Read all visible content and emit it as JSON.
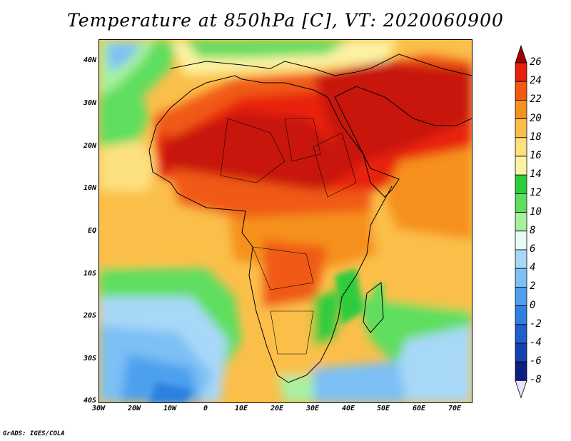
{
  "title": "Temperature at 850hPa [C], VT: 2020060900",
  "credit": "GrADS: IGES/COLA",
  "map": {
    "projection": "latlon",
    "lon_range": [
      -30,
      75
    ],
    "lat_range": [
      -40,
      45
    ],
    "lat_ticks": [
      "40N",
      "30N",
      "20N",
      "10N",
      "EQ",
      "10S",
      "20S",
      "30S",
      "40S"
    ],
    "lon_ticks": [
      "30W",
      "20W",
      "10W",
      "0",
      "10E",
      "20E",
      "30E",
      "40E",
      "50E",
      "60E",
      "70E"
    ]
  },
  "colorbar": {
    "unit": "C",
    "levels": [
      26,
      24,
      22,
      20,
      18,
      16,
      14,
      12,
      10,
      8,
      6,
      4,
      2,
      0,
      "-2",
      "-4",
      "-6",
      "-8"
    ],
    "colors": [
      "#a00000",
      "#e8200e",
      "#f05a12",
      "#f5911e",
      "#fbbf4a",
      "#fde07f",
      "#fdf2a4",
      "#2ecc3c",
      "#5fde5e",
      "#a8f0a0",
      "#e6fbf4",
      "#a8d8f8",
      "#7cc0f5",
      "#4da0ee",
      "#2f80e0",
      "#1f5fd0",
      "#1640b0",
      "#0c1f85",
      "#e8e4ff"
    ]
  }
}
